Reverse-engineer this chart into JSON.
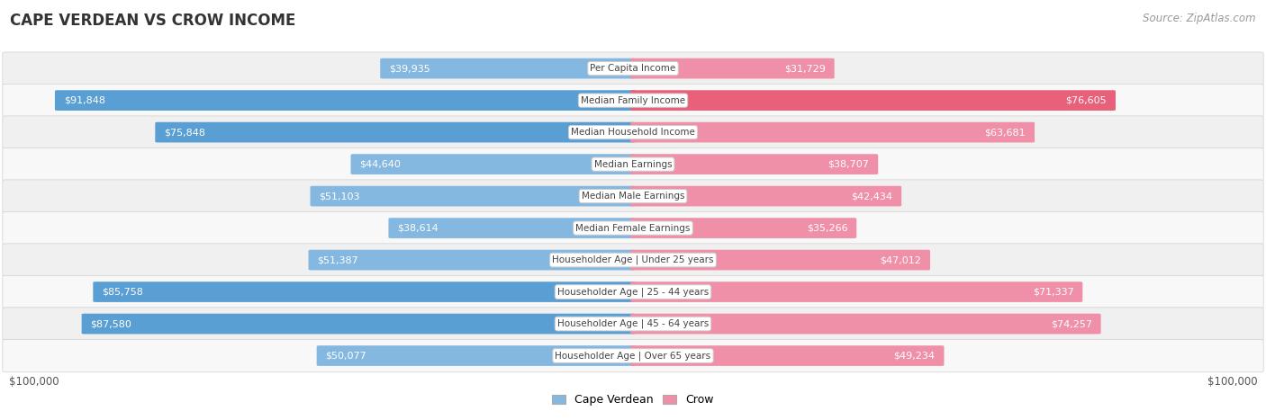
{
  "title": "CAPE VERDEAN VS CROW INCOME",
  "source": "Source: ZipAtlas.com",
  "categories": [
    "Per Capita Income",
    "Median Family Income",
    "Median Household Income",
    "Median Earnings",
    "Median Male Earnings",
    "Median Female Earnings",
    "Householder Age | Under 25 years",
    "Householder Age | 25 - 44 years",
    "Householder Age | 45 - 64 years",
    "Householder Age | Over 65 years"
  ],
  "cape_verdean": [
    39935,
    91848,
    75848,
    44640,
    51103,
    38614,
    51387,
    85758,
    87580,
    50077
  ],
  "crow": [
    31729,
    76605,
    63681,
    38707,
    42434,
    35266,
    47012,
    71337,
    74257,
    49234
  ],
  "cape_verdean_labels": [
    "$39,935",
    "$91,848",
    "$75,848",
    "$44,640",
    "$51,103",
    "$38,614",
    "$51,387",
    "$85,758",
    "$87,580",
    "$50,077"
  ],
  "crow_labels": [
    "$31,729",
    "$76,605",
    "$63,681",
    "$38,707",
    "$42,434",
    "$35,266",
    "$47,012",
    "$71,337",
    "$74,257",
    "$49,234"
  ],
  "max_val": 100000,
  "color_cape_verdean": "#85b8e0",
  "color_crow": "#f090a8",
  "color_cape_verdean_strong": "#5a9fd4",
  "color_crow_strong": "#e8607a",
  "row_bg": "#f0f0f0",
  "row_bg2": "#f8f8f8",
  "label_fontsize": 8.0,
  "title_fontsize": 12,
  "source_fontsize": 8.5
}
